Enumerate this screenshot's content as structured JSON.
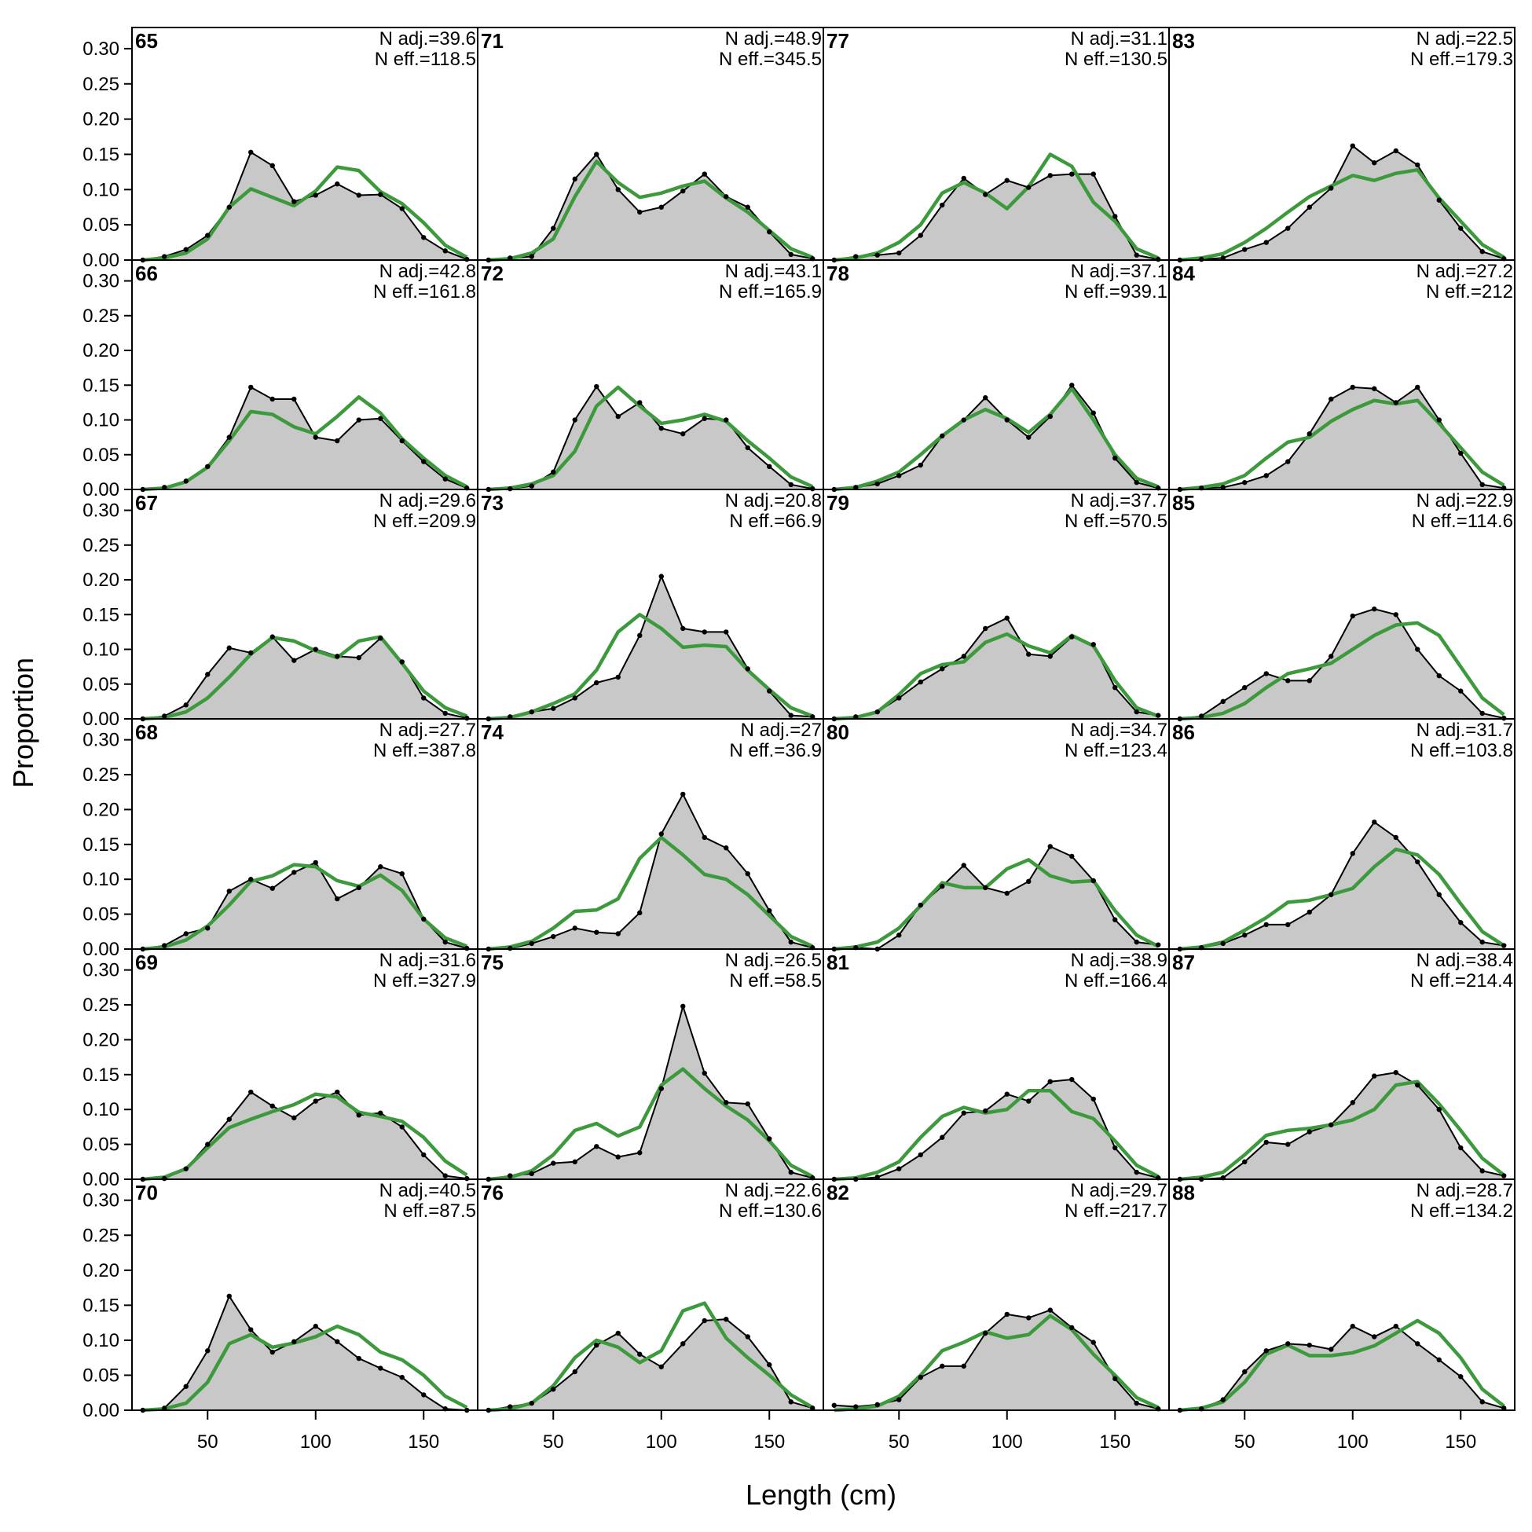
{
  "chart_data": {
    "type": "area",
    "xlabel": "Length (cm)",
    "ylabel": "Proportion",
    "xlim": [
      15,
      175
    ],
    "ylim": [
      0,
      0.33
    ],
    "xticks": [
      50,
      100,
      150
    ],
    "yticks": [
      0.0,
      0.05,
      0.1,
      0.15,
      0.2,
      0.25,
      0.3
    ],
    "ytick_labels": [
      "0.00",
      "0.05",
      "0.10",
      "0.15",
      "0.20",
      "0.25",
      "0.30"
    ],
    "x": [
      20,
      30,
      40,
      50,
      60,
      70,
      80,
      90,
      100,
      110,
      120,
      130,
      140,
      150,
      160,
      170
    ],
    "grid": false,
    "colors": {
      "observed_fill": "#c8c8c8",
      "observed_line": "#000000",
      "expected_line": "#3c9a3c"
    },
    "panels": [
      {
        "label": "65",
        "n_adj": "N adj.=39.6",
        "n_eff": "N eff.=118.5",
        "observed": [
          0,
          0.005,
          0.015,
          0.035,
          0.075,
          0.153,
          0.134,
          0.083,
          0.092,
          0.108,
          0.092,
          0.093,
          0.073,
          0.032,
          0.013,
          0.001
        ],
        "expected": [
          0,
          0.003,
          0.01,
          0.03,
          0.075,
          0.101,
          0.089,
          0.077,
          0.098,
          0.132,
          0.127,
          0.097,
          0.08,
          0.053,
          0.021,
          0.004
        ]
      },
      {
        "label": "66",
        "n_adj": "N adj.=42.8",
        "n_eff": "N eff.=161.8",
        "observed": [
          0,
          0.003,
          0.012,
          0.033,
          0.075,
          0.147,
          0.13,
          0.13,
          0.075,
          0.07,
          0.1,
          0.102,
          0.07,
          0.04,
          0.015,
          0.002
        ],
        "expected": [
          0,
          0.002,
          0.011,
          0.032,
          0.07,
          0.112,
          0.108,
          0.09,
          0.08,
          0.105,
          0.133,
          0.11,
          0.073,
          0.045,
          0.02,
          0.004
        ]
      },
      {
        "label": "67",
        "n_adj": "N adj.=29.6",
        "n_eff": "N eff.=209.9",
        "observed": [
          0,
          0.004,
          0.02,
          0.064,
          0.102,
          0.095,
          0.118,
          0.084,
          0.1,
          0.09,
          0.088,
          0.116,
          0.082,
          0.03,
          0.008,
          0.001
        ],
        "expected": [
          0,
          0.002,
          0.01,
          0.03,
          0.06,
          0.093,
          0.117,
          0.112,
          0.098,
          0.088,
          0.112,
          0.118,
          0.08,
          0.04,
          0.016,
          0.004
        ]
      },
      {
        "label": "68",
        "n_adj": "N adj.=27.7",
        "n_eff": "N eff.=387.8",
        "observed": [
          0,
          0.005,
          0.022,
          0.03,
          0.083,
          0.1,
          0.087,
          0.11,
          0.124,
          0.072,
          0.088,
          0.118,
          0.108,
          0.043,
          0.01,
          0.001
        ],
        "expected": [
          0,
          0.003,
          0.013,
          0.033,
          0.063,
          0.097,
          0.105,
          0.121,
          0.118,
          0.098,
          0.09,
          0.106,
          0.084,
          0.043,
          0.016,
          0.004
        ]
      },
      {
        "label": "69",
        "n_adj": "N adj.=31.6",
        "n_eff": "N eff.=327.9",
        "observed": [
          0,
          0.001,
          0.015,
          0.05,
          0.086,
          0.125,
          0.105,
          0.088,
          0.112,
          0.125,
          0.092,
          0.095,
          0.075,
          0.035,
          0.005,
          0.001
        ],
        "expected": [
          0,
          0.003,
          0.015,
          0.045,
          0.074,
          0.086,
          0.097,
          0.107,
          0.122,
          0.118,
          0.096,
          0.09,
          0.083,
          0.06,
          0.026,
          0.006
        ]
      },
      {
        "label": "70",
        "n_adj": "N adj.=40.5",
        "n_eff": "N eff.=87.5",
        "observed": [
          0,
          0.003,
          0.034,
          0.085,
          0.163,
          0.115,
          0.083,
          0.098,
          0.12,
          0.098,
          0.074,
          0.06,
          0.047,
          0.022,
          0.002,
          0
        ],
        "expected": [
          0,
          0.002,
          0.01,
          0.04,
          0.095,
          0.108,
          0.09,
          0.096,
          0.105,
          0.12,
          0.108,
          0.083,
          0.072,
          0.05,
          0.02,
          0.004
        ]
      },
      {
        "label": "71",
        "n_adj": "N adj.=48.9",
        "n_eff": "N eff.=345.5",
        "observed": [
          0,
          0.003,
          0.005,
          0.045,
          0.115,
          0.15,
          0.1,
          0.068,
          0.075,
          0.098,
          0.122,
          0.09,
          0.075,
          0.04,
          0.008,
          0.002
        ],
        "expected": [
          0,
          0.002,
          0.01,
          0.03,
          0.09,
          0.14,
          0.11,
          0.089,
          0.095,
          0.105,
          0.112,
          0.088,
          0.068,
          0.042,
          0.016,
          0.004
        ]
      },
      {
        "label": "72",
        "n_adj": "N adj.=43.1",
        "n_eff": "N eff.=165.9",
        "observed": [
          0,
          0.001,
          0.005,
          0.025,
          0.1,
          0.148,
          0.105,
          0.125,
          0.088,
          0.08,
          0.102,
          0.1,
          0.06,
          0.033,
          0.007,
          0.001
        ],
        "expected": [
          0,
          0.002,
          0.008,
          0.02,
          0.055,
          0.12,
          0.147,
          0.12,
          0.095,
          0.1,
          0.108,
          0.098,
          0.07,
          0.045,
          0.018,
          0.004
        ]
      },
      {
        "label": "73",
        "n_adj": "N adj.=20.8",
        "n_eff": "N eff.=66.9",
        "observed": [
          0,
          0.003,
          0.01,
          0.015,
          0.03,
          0.052,
          0.06,
          0.12,
          0.205,
          0.13,
          0.125,
          0.125,
          0.072,
          0.04,
          0.005,
          0.003
        ],
        "expected": [
          0,
          0.002,
          0.01,
          0.022,
          0.036,
          0.07,
          0.125,
          0.15,
          0.13,
          0.103,
          0.106,
          0.104,
          0.07,
          0.042,
          0.016,
          0.004
        ]
      },
      {
        "label": "74",
        "n_adj": "N adj.=27",
        "n_eff": "N eff.=36.9",
        "observed": [
          0,
          0.001,
          0.008,
          0.018,
          0.03,
          0.024,
          0.022,
          0.052,
          0.165,
          0.222,
          0.16,
          0.145,
          0.108,
          0.055,
          0.01,
          0.002
        ],
        "expected": [
          0,
          0.003,
          0.011,
          0.03,
          0.054,
          0.056,
          0.072,
          0.13,
          0.16,
          0.135,
          0.107,
          0.1,
          0.078,
          0.048,
          0.018,
          0.004
        ]
      },
      {
        "label": "75",
        "n_adj": "N adj.=26.5",
        "n_eff": "N eff.=58.5",
        "observed": [
          0,
          0.005,
          0.008,
          0.023,
          0.025,
          0.047,
          0.032,
          0.038,
          0.13,
          0.248,
          0.152,
          0.11,
          0.108,
          0.058,
          0.01,
          0.002
        ],
        "expected": [
          0,
          0.003,
          0.012,
          0.035,
          0.07,
          0.08,
          0.062,
          0.075,
          0.135,
          0.158,
          0.13,
          0.105,
          0.085,
          0.055,
          0.02,
          0.004
        ]
      },
      {
        "label": "76",
        "n_adj": "N adj.=22.6",
        "n_eff": "N eff.=130.6",
        "observed": [
          0,
          0.005,
          0.01,
          0.03,
          0.055,
          0.093,
          0.11,
          0.08,
          0.062,
          0.095,
          0.128,
          0.13,
          0.105,
          0.065,
          0.012,
          0.003
        ],
        "expected": [
          0,
          0.002,
          0.01,
          0.035,
          0.075,
          0.1,
          0.09,
          0.068,
          0.085,
          0.142,
          0.153,
          0.103,
          0.075,
          0.05,
          0.022,
          0.004
        ]
      },
      {
        "label": "77",
        "n_adj": "N adj.=31.1",
        "n_eff": "N eff.=130.5",
        "observed": [
          0,
          0.005,
          0.007,
          0.01,
          0.035,
          0.078,
          0.116,
          0.093,
          0.113,
          0.103,
          0.12,
          0.122,
          0.122,
          0.062,
          0.007,
          0.001
        ],
        "expected": [
          0,
          0.003,
          0.01,
          0.025,
          0.05,
          0.095,
          0.11,
          0.095,
          0.073,
          0.104,
          0.15,
          0.133,
          0.082,
          0.055,
          0.016,
          0.003
        ]
      },
      {
        "label": "78",
        "n_adj": "N adj.=37.1",
        "n_eff": "N eff.=939.1",
        "observed": [
          0,
          0.003,
          0.008,
          0.02,
          0.035,
          0.077,
          0.1,
          0.132,
          0.1,
          0.075,
          0.105,
          0.15,
          0.11,
          0.045,
          0.01,
          0.002
        ],
        "expected": [
          0,
          0.003,
          0.012,
          0.025,
          0.05,
          0.077,
          0.1,
          0.115,
          0.102,
          0.082,
          0.108,
          0.145,
          0.1,
          0.05,
          0.016,
          0.004
        ]
      },
      {
        "label": "79",
        "n_adj": "N adj.=37.7",
        "n_eff": "N eff.=570.5",
        "observed": [
          0,
          0.003,
          0.01,
          0.03,
          0.053,
          0.072,
          0.09,
          0.13,
          0.145,
          0.093,
          0.09,
          0.118,
          0.107,
          0.045,
          0.01,
          0.005
        ],
        "expected": [
          0,
          0.002,
          0.01,
          0.035,
          0.065,
          0.078,
          0.082,
          0.11,
          0.122,
          0.105,
          0.095,
          0.12,
          0.105,
          0.055,
          0.016,
          0.004
        ]
      },
      {
        "label": "80",
        "n_adj": "N adj.=34.7",
        "n_eff": "N eff.=123.4",
        "observed": [
          0,
          0.002,
          0,
          0.02,
          0.063,
          0.09,
          0.12,
          0.088,
          0.08,
          0.097,
          0.147,
          0.133,
          0.098,
          0.042,
          0.01,
          0.006
        ],
        "expected": [
          0,
          0.003,
          0.01,
          0.03,
          0.062,
          0.095,
          0.088,
          0.088,
          0.115,
          0.128,
          0.105,
          0.096,
          0.098,
          0.055,
          0.02,
          0.004
        ]
      },
      {
        "label": "81",
        "n_adj": "N adj.=38.9",
        "n_eff": "N eff.=166.4",
        "observed": [
          0,
          0,
          0.003,
          0.015,
          0.035,
          0.06,
          0.095,
          0.098,
          0.122,
          0.112,
          0.14,
          0.143,
          0.115,
          0.045,
          0.01,
          0.002
        ],
        "expected": [
          0,
          0.002,
          0.01,
          0.025,
          0.06,
          0.09,
          0.103,
          0.095,
          0.1,
          0.127,
          0.127,
          0.097,
          0.087,
          0.055,
          0.02,
          0.004
        ]
      },
      {
        "label": "82",
        "n_adj": "N adj.=29.7",
        "n_eff": "N eff.=217.7",
        "observed": [
          0.007,
          0.005,
          0.008,
          0.015,
          0.047,
          0.063,
          0.063,
          0.11,
          0.137,
          0.132,
          0.143,
          0.118,
          0.097,
          0.045,
          0.01,
          0.002
        ],
        "expected": [
          0,
          0.002,
          0.006,
          0.02,
          0.05,
          0.085,
          0.097,
          0.112,
          0.103,
          0.108,
          0.135,
          0.115,
          0.08,
          0.05,
          0.018,
          0.004
        ]
      },
      {
        "label": "83",
        "n_adj": "N adj.=22.5",
        "n_eff": "N eff.=179.3",
        "observed": [
          0,
          0.001,
          0.003,
          0.015,
          0.025,
          0.045,
          0.075,
          0.102,
          0.162,
          0.138,
          0.155,
          0.135,
          0.085,
          0.045,
          0.012,
          0.002
        ],
        "expected": [
          0,
          0.003,
          0.009,
          0.025,
          0.045,
          0.068,
          0.09,
          0.105,
          0.12,
          0.113,
          0.123,
          0.128,
          0.088,
          0.055,
          0.022,
          0.004
        ]
      },
      {
        "label": "84",
        "n_adj": "N adj.=27.2",
        "n_eff": "N eff.=212",
        "observed": [
          0,
          0.002,
          0.003,
          0.01,
          0.02,
          0.04,
          0.08,
          0.13,
          0.147,
          0.145,
          0.125,
          0.147,
          0.1,
          0.052,
          0.007,
          0.002
        ],
        "expected": [
          0,
          0.003,
          0.008,
          0.02,
          0.045,
          0.068,
          0.075,
          0.098,
          0.115,
          0.128,
          0.123,
          0.128,
          0.095,
          0.06,
          0.025,
          0.006
        ]
      },
      {
        "label": "85",
        "n_adj": "N adj.=22.9",
        "n_eff": "N eff.=114.6",
        "observed": [
          0,
          0.004,
          0.025,
          0.045,
          0.065,
          0.055,
          0.055,
          0.09,
          0.148,
          0.158,
          0.15,
          0.1,
          0.062,
          0.04,
          0.008,
          0.001
        ],
        "expected": [
          0,
          0.002,
          0.008,
          0.022,
          0.045,
          0.065,
          0.072,
          0.08,
          0.1,
          0.12,
          0.135,
          0.138,
          0.12,
          0.075,
          0.03,
          0.006
        ]
      },
      {
        "label": "86",
        "n_adj": "N adj.=31.7",
        "n_eff": "N eff.=103.8",
        "observed": [
          0,
          0.002,
          0.008,
          0.02,
          0.035,
          0.035,
          0.053,
          0.078,
          0.137,
          0.182,
          0.16,
          0.125,
          0.078,
          0.038,
          0.01,
          0.005
        ],
        "expected": [
          0,
          0.003,
          0.01,
          0.027,
          0.045,
          0.067,
          0.07,
          0.078,
          0.087,
          0.118,
          0.143,
          0.135,
          0.107,
          0.065,
          0.025,
          0.005
        ]
      },
      {
        "label": "87",
        "n_adj": "N adj.=38.4",
        "n_eff": "N eff.=214.4",
        "observed": [
          0,
          0,
          0.002,
          0.025,
          0.053,
          0.05,
          0.068,
          0.078,
          0.11,
          0.148,
          0.153,
          0.135,
          0.1,
          0.045,
          0.012,
          0.005
        ],
        "expected": [
          0,
          0.003,
          0.01,
          0.035,
          0.063,
          0.07,
          0.073,
          0.078,
          0.085,
          0.1,
          0.135,
          0.14,
          0.108,
          0.07,
          0.03,
          0.006
        ]
      },
      {
        "label": "88",
        "n_adj": "N adj.=28.7",
        "n_eff": "N eff.=134.2",
        "observed": [
          0,
          0.002,
          0.015,
          0.055,
          0.085,
          0.095,
          0.093,
          0.087,
          0.12,
          0.105,
          0.12,
          0.095,
          0.072,
          0.048,
          0.012,
          0.003
        ],
        "expected": [
          0,
          0.003,
          0.012,
          0.04,
          0.08,
          0.093,
          0.078,
          0.078,
          0.082,
          0.092,
          0.11,
          0.128,
          0.11,
          0.075,
          0.03,
          0.006
        ]
      }
    ]
  }
}
